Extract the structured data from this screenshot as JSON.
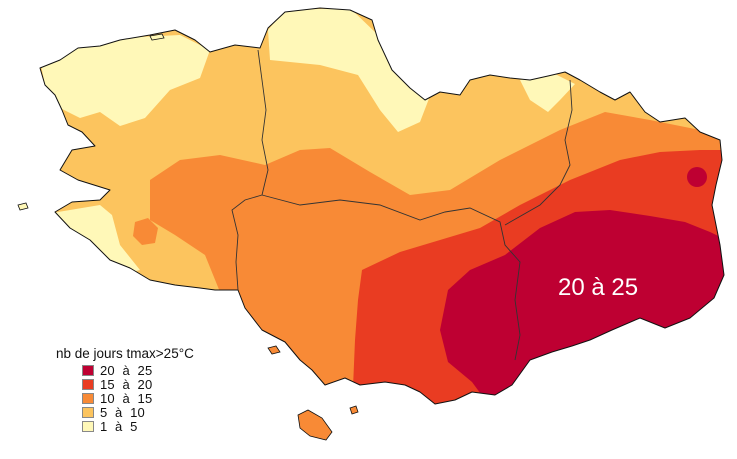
{
  "legend": {
    "title": "nb de jours tmax>25°C",
    "items": [
      {
        "label": "20  à  25",
        "color": "#BE0032"
      },
      {
        "label": "15  à  20",
        "color": "#E93C22"
      },
      {
        "label": "10  à  15",
        "color": "#F88A36"
      },
      {
        "label": "5  à  10",
        "color": "#FCC45E"
      },
      {
        "label": "1  à  5",
        "color": "#FFF8B8"
      }
    ]
  },
  "annotation": {
    "text": "20 à 25"
  }
}
